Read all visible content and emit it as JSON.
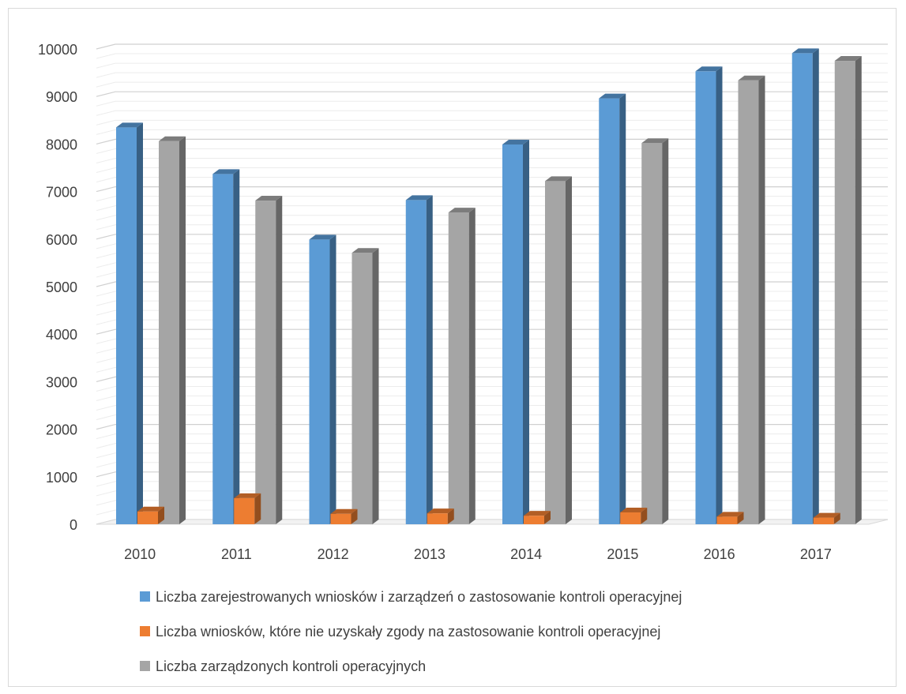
{
  "chart_data": {
    "type": "bar",
    "categories": [
      "2010",
      "2011",
      "2012",
      "2013",
      "2014",
      "2015",
      "2016",
      "2017"
    ],
    "series": [
      {
        "name": "Liczba zarejestrowanych wniosków i zarządzeń o zastosowanie kontroli operacyjnej",
        "values": [
          8350,
          7370,
          5990,
          6820,
          7990,
          8960,
          9530,
          9910
        ],
        "color": "#5b9bd5"
      },
      {
        "name": "Liczba wniosków, które nie uzyskały zgody na zastosowanie kontroli operacyjnej",
        "values": [
          270,
          550,
          220,
          230,
          180,
          250,
          160,
          140
        ],
        "color": "#ed7d31"
      },
      {
        "name": "Liczba zarządzonych kontroli operacyjnych",
        "values": [
          8060,
          6810,
          5710,
          6560,
          7220,
          8020,
          9340,
          9750
        ],
        "color": "#a5a5a5"
      }
    ],
    "y_ticks": [
      "0",
      "1000",
      "2000",
      "3000",
      "4000",
      "5000",
      "6000",
      "7000",
      "8000",
      "9000",
      "10000"
    ],
    "ylim": [
      0,
      10000
    ],
    "grid": true,
    "three_d": true,
    "legend_position": "bottom"
  }
}
